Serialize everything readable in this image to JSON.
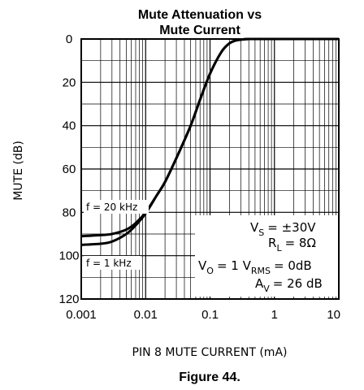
{
  "chart_data": {
    "type": "line",
    "title_line1": "Mute Attenuation vs",
    "title_line2": "Mute Current",
    "xlabel": "PIN 8 MUTE CURRENT (mA)",
    "ylabel": "MUTE (dB)",
    "x_scale": "log",
    "xlim": [
      0.001,
      10
    ],
    "ylim": [
      0,
      120
    ],
    "y_inverted": true,
    "x_ticks": [
      "0.001",
      "0.01",
      "0.1",
      "1",
      "10"
    ],
    "y_ticks": [
      "0",
      "20",
      "40",
      "60",
      "80",
      "100",
      "120"
    ],
    "grid": true,
    "series": [
      {
        "name": "f = 20 kHz",
        "x": [
          0.001,
          0.002,
          0.003,
          0.005,
          0.007,
          0.01,
          0.015,
          0.02,
          0.03,
          0.05,
          0.07,
          0.1,
          0.15,
          0.2,
          0.25,
          0.3,
          0.4,
          0.5,
          1,
          2,
          5,
          10
        ],
        "y": [
          91,
          90.5,
          90,
          88,
          85,
          80,
          72,
          66,
          55,
          40,
          28,
          16,
          6,
          2,
          0.7,
          0.3,
          0,
          0,
          0,
          0,
          0,
          0
        ]
      },
      {
        "name": "f = 1 kHz",
        "x": [
          0.001,
          0.002,
          0.003,
          0.005,
          0.007,
          0.01,
          0.015,
          0.02,
          0.03,
          0.05,
          0.07,
          0.1,
          0.15,
          0.2,
          0.25,
          0.3,
          0.4,
          0.5,
          1,
          2,
          5,
          10
        ],
        "y": [
          95,
          94.5,
          93.5,
          90,
          86,
          80.5,
          72,
          66,
          55,
          40,
          28,
          16,
          6,
          2,
          0.7,
          0.3,
          0,
          0,
          0,
          0,
          0,
          0
        ]
      }
    ],
    "conditions": {
      "vs_label": "V",
      "vs_sub": "S",
      "vs_value": "= ±30V",
      "rl_label": "R",
      "rl_sub": "L",
      "rl_value": "= 8Ω",
      "vo_label": "V",
      "vo_sub": "O",
      "vo_mid": "= 1 V",
      "vo_sub2": "RMS",
      "vo_value": "= 0dB",
      "av_label": "A",
      "av_sub": "V",
      "av_value": "= 26 dB"
    }
  },
  "caption": "Figure 44."
}
